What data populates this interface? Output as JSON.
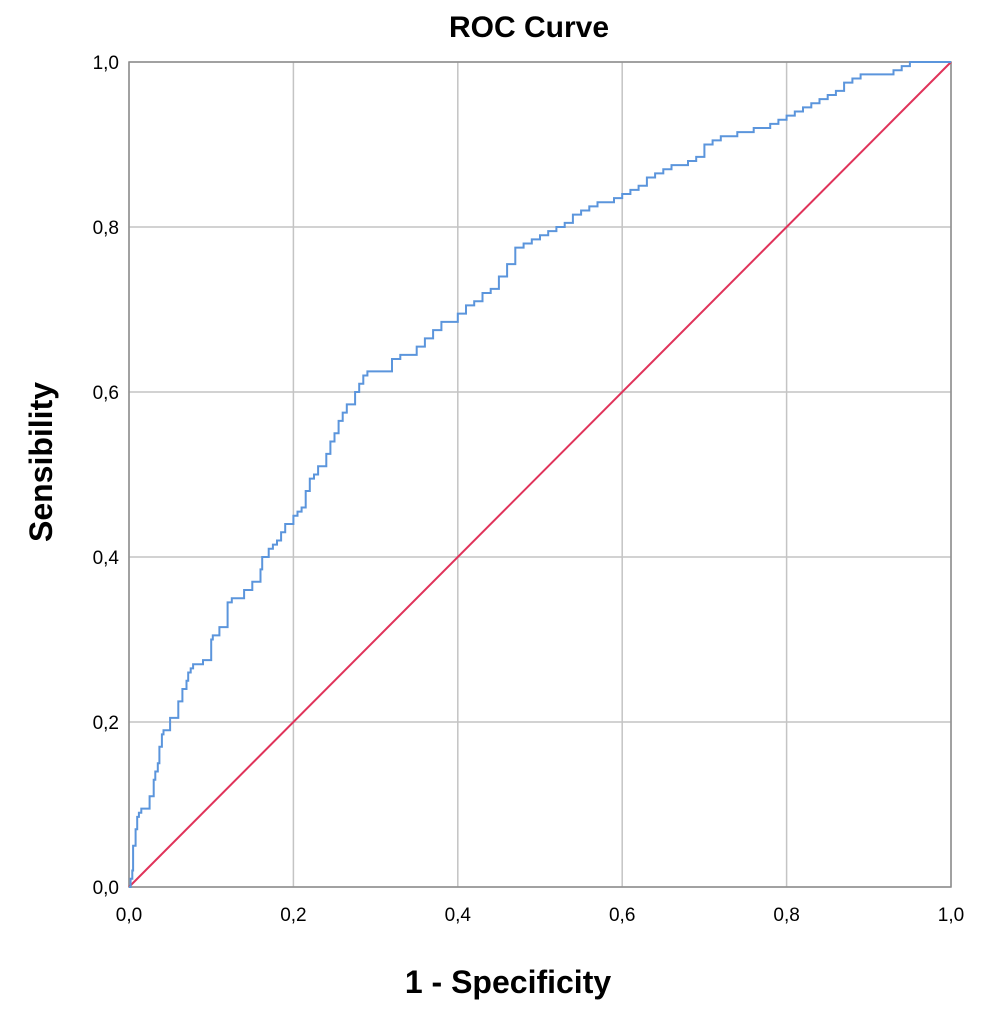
{
  "chart_data": {
    "type": "line",
    "title": "ROC Curve",
    "xlabel": "1 - Specificity",
    "ylabel": "Sensibility",
    "xlim": [
      0,
      1
    ],
    "ylim": [
      0,
      1
    ],
    "grid": true,
    "x_ticks": [
      "0,0",
      "0,2",
      "0,4",
      "0,6",
      "0,8",
      "1,0"
    ],
    "y_ticks": [
      "0,0",
      "0,2",
      "0,4",
      "0,6",
      "0,8",
      "1,0"
    ],
    "colors": {
      "roc": "#5b95dc",
      "reference": "#e0335a",
      "grid": "#c4c4c4",
      "frame": "#8c8c8c"
    },
    "series": [
      {
        "x": [
          0,
          0.002,
          0.004,
          0.005,
          0.008,
          0.01,
          0.012,
          0.015,
          0.025,
          0.03,
          0.032,
          0.035,
          0.037,
          0.04,
          0.042,
          0.045,
          0.05,
          0.06,
          0.065,
          0.07,
          0.072,
          0.075,
          0.078,
          0.08,
          0.09,
          0.1,
          0.102,
          0.11,
          0.12,
          0.125,
          0.14,
          0.15,
          0.16,
          0.162,
          0.17,
          0.175,
          0.18,
          0.185,
          0.19,
          0.2,
          0.205,
          0.21,
          0.215,
          0.22,
          0.225,
          0.23,
          0.24,
          0.245,
          0.25,
          0.255,
          0.26,
          0.265,
          0.275,
          0.28,
          0.285,
          0.29,
          0.3,
          0.32,
          0.33,
          0.34,
          0.35,
          0.36,
          0.37,
          0.38,
          0.4,
          0.41,
          0.42,
          0.43,
          0.44,
          0.45,
          0.46,
          0.47,
          0.48,
          0.49,
          0.5,
          0.51,
          0.52,
          0.53,
          0.54,
          0.55,
          0.56,
          0.57,
          0.58,
          0.59,
          0.6,
          0.61,
          0.62,
          0.63,
          0.64,
          0.65,
          0.66,
          0.68,
          0.69,
          0.7,
          0.71,
          0.72,
          0.74,
          0.76,
          0.78,
          0.79,
          0.8,
          0.81,
          0.82,
          0.83,
          0.84,
          0.85,
          0.86,
          0.87,
          0.88,
          0.89,
          0.9,
          0.92,
          0.93,
          0.94,
          0.95,
          0.96,
          0.97,
          0.99,
          1.0
        ],
        "y": [
          0,
          0.01,
          0.02,
          0.05,
          0.07,
          0.085,
          0.09,
          0.095,
          0.11,
          0.13,
          0.14,
          0.15,
          0.17,
          0.185,
          0.19,
          0.19,
          0.205,
          0.225,
          0.24,
          0.25,
          0.26,
          0.265,
          0.27,
          0.27,
          0.275,
          0.3,
          0.305,
          0.315,
          0.345,
          0.35,
          0.36,
          0.37,
          0.385,
          0.4,
          0.41,
          0.415,
          0.42,
          0.43,
          0.44,
          0.45,
          0.455,
          0.46,
          0.48,
          0.495,
          0.5,
          0.51,
          0.525,
          0.54,
          0.55,
          0.565,
          0.575,
          0.585,
          0.6,
          0.61,
          0.62,
          0.625,
          0.625,
          0.64,
          0.645,
          0.645,
          0.655,
          0.665,
          0.675,
          0.685,
          0.695,
          0.705,
          0.71,
          0.72,
          0.725,
          0.74,
          0.755,
          0.775,
          0.78,
          0.785,
          0.79,
          0.795,
          0.8,
          0.805,
          0.815,
          0.82,
          0.825,
          0.83,
          0.83,
          0.835,
          0.84,
          0.845,
          0.85,
          0.86,
          0.865,
          0.87,
          0.875,
          0.88,
          0.885,
          0.9,
          0.905,
          0.91,
          0.915,
          0.92,
          0.925,
          0.93,
          0.935,
          0.94,
          0.945,
          0.95,
          0.955,
          0.96,
          0.965,
          0.975,
          0.98,
          0.985,
          0.985,
          0.985,
          0.99,
          0.995,
          1.0,
          1.0,
          1.0,
          1.0,
          1.0
        ]
      },
      {
        "x": [
          0,
          1
        ],
        "y": [
          0,
          1
        ]
      }
    ]
  }
}
